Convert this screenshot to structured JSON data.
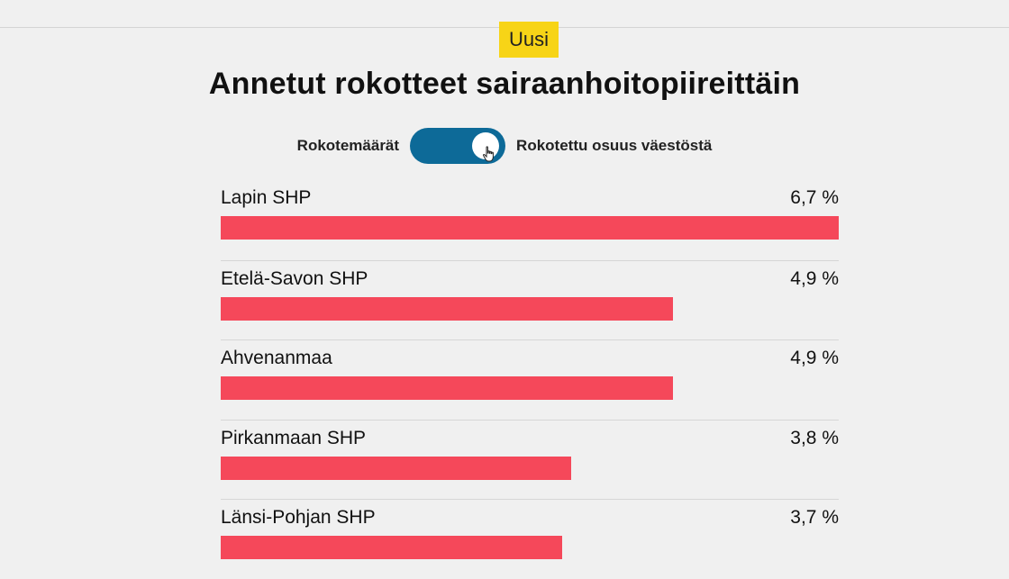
{
  "header": {
    "badge": "Uusi",
    "title": "Annetut rokotteet sairaanhoitopiireittäin"
  },
  "toggle": {
    "left_label": "Rokotemäärät",
    "right_label": "Rokotettu osuus väestöstä",
    "selected": "Rokotettu osuus väestöstä",
    "track_color": "#0d6a98"
  },
  "chart_data": {
    "type": "bar",
    "orientation": "horizontal",
    "title": "Annetut rokotteet sairaanhoitopiireittäin",
    "categories": [
      "Lapin SHP",
      "Etelä-Savon SHP",
      "Ahvenanmaa",
      "Pirkanmaan SHP",
      "Länsi-Pohjan SHP"
    ],
    "values": [
      6.7,
      4.9,
      4.9,
      3.8,
      3.7
    ],
    "value_labels": [
      "6,7 %",
      "4,9 %",
      "4,9 %",
      "3,8 %",
      "3,7 %"
    ],
    "xlim": [
      0,
      6.7
    ],
    "bar_color": "#f5485a",
    "grid": false,
    "legend": "none"
  }
}
